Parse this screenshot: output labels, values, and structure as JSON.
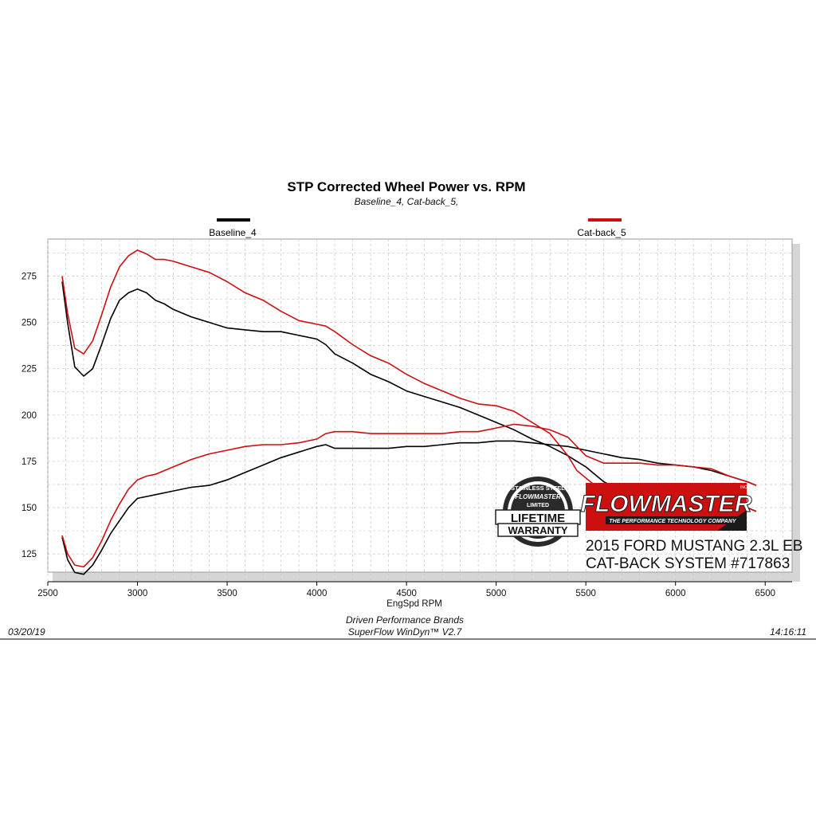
{
  "chart_data": {
    "type": "line",
    "title": "STP Corrected Wheel Power vs. RPM",
    "subtitle": "Baseline_4, Cat-back_5,",
    "xlabel": "EngSpd  RPM",
    "ylabel": "",
    "xlim": [
      2500,
      6650
    ],
    "ylim": [
      110,
      295
    ],
    "x_ticks": [
      2500,
      3000,
      3500,
      4000,
      4500,
      5000,
      5500,
      6000,
      6500
    ],
    "y_ticks": [
      125,
      150,
      175,
      200,
      225,
      250,
      275
    ],
    "grid": true,
    "legend_placement": "top",
    "series": [
      {
        "name": "Baseline_4",
        "role": "upper",
        "color": "#000000",
        "x": [
          2580,
          2610,
          2650,
          2700,
          2750,
          2800,
          2850,
          2900,
          2950,
          3000,
          3050,
          3100,
          3150,
          3200,
          3300,
          3400,
          3500,
          3600,
          3700,
          3800,
          3900,
          4000,
          4050,
          4100,
          4200,
          4300,
          4400,
          4500,
          4600,
          4700,
          4800,
          4900,
          5000,
          5100,
          5200,
          5300,
          5400,
          5450,
          5500,
          5550,
          5600,
          5700,
          5800,
          5900,
          6000,
          6100,
          6200,
          6300,
          6400,
          6450
        ],
        "y": [
          272,
          250,
          226,
          221,
          225,
          238,
          252,
          262,
          266,
          268,
          266,
          262,
          260,
          257,
          253,
          250,
          247,
          246,
          245,
          245,
          243,
          241,
          238,
          233,
          228,
          222,
          218,
          213,
          210,
          207,
          204,
          200,
          196,
          192,
          187,
          183,
          178,
          175,
          172,
          168,
          164,
          159,
          156,
          155,
          154,
          154,
          153,
          151,
          150,
          148
        ]
      },
      {
        "name": "Cat-back_5",
        "role": "upper",
        "color": "#cc1010",
        "x": [
          2580,
          2610,
          2650,
          2700,
          2750,
          2800,
          2850,
          2900,
          2950,
          3000,
          3050,
          3100,
          3150,
          3200,
          3300,
          3400,
          3500,
          3600,
          3700,
          3800,
          3900,
          4000,
          4050,
          4100,
          4200,
          4300,
          4400,
          4500,
          4600,
          4700,
          4800,
          4900,
          5000,
          5100,
          5200,
          5300,
          5400,
          5450,
          5500,
          5550,
          5600,
          5700,
          5800,
          5900,
          6000,
          6100,
          6200,
          6300,
          6400,
          6450
        ],
        "y": [
          275,
          255,
          236,
          233,
          240,
          254,
          269,
          280,
          286,
          289,
          287,
          284,
          284,
          283,
          280,
          277,
          272,
          266,
          262,
          256,
          251,
          249,
          248,
          245,
          238,
          232,
          228,
          222,
          217,
          213,
          209,
          206,
          205,
          202,
          196,
          190,
          178,
          170,
          166,
          162,
          160,
          157,
          155,
          154,
          154,
          154,
          153,
          151,
          150,
          148
        ]
      },
      {
        "name": "Baseline_4",
        "role": "lower",
        "color": "#000000",
        "x": [
          2580,
          2610,
          2650,
          2700,
          2750,
          2800,
          2850,
          2900,
          2950,
          3000,
          3050,
          3100,
          3200,
          3300,
          3400,
          3500,
          3600,
          3700,
          3800,
          3900,
          4000,
          4050,
          4100,
          4200,
          4300,
          4400,
          4500,
          4600,
          4700,
          4800,
          4900,
          5000,
          5100,
          5200,
          5300,
          5400,
          5500,
          5600,
          5700,
          5800,
          5900,
          6000,
          6100,
          6200,
          6300,
          6400,
          6450
        ],
        "y": [
          134,
          122,
          115,
          114,
          119,
          127,
          136,
          143,
          150,
          155,
          156,
          157,
          159,
          161,
          162,
          165,
          169,
          173,
          177,
          180,
          183,
          184,
          182,
          182,
          182,
          182,
          183,
          183,
          184,
          185,
          185,
          186,
          186,
          185,
          184,
          183,
          181,
          179,
          177,
          176,
          174,
          173,
          172,
          170,
          167,
          164,
          162
        ]
      },
      {
        "name": "Cat-back_5",
        "role": "lower",
        "color": "#cc1010",
        "x": [
          2580,
          2610,
          2650,
          2700,
          2750,
          2800,
          2850,
          2900,
          2950,
          3000,
          3050,
          3100,
          3200,
          3300,
          3400,
          3500,
          3600,
          3700,
          3800,
          3900,
          4000,
          4050,
          4100,
          4200,
          4300,
          4400,
          4500,
          4600,
          4700,
          4800,
          4900,
          5000,
          5100,
          5200,
          5300,
          5400,
          5500,
          5600,
          5700,
          5800,
          5900,
          6000,
          6100,
          6200,
          6300,
          6400,
          6450
        ],
        "y": [
          135,
          125,
          119,
          118,
          123,
          132,
          143,
          152,
          160,
          165,
          167,
          168,
          172,
          176,
          179,
          181,
          183,
          184,
          184,
          185,
          187,
          190,
          191,
          191,
          190,
          190,
          190,
          190,
          190,
          191,
          191,
          193,
          195,
          194,
          192,
          188,
          178,
          174,
          174,
          174,
          173,
          173,
          172,
          171,
          167,
          164,
          162
        ]
      }
    ],
    "legend": [
      {
        "label": "Baseline_4",
        "color": "#000000"
      },
      {
        "label": "Cat-back_5",
        "color": "#cc1010"
      }
    ]
  },
  "footer": {
    "date": "03/20/19",
    "company": "Driven Performance Brands",
    "software": "SuperFlow WinDyn™  V2.7",
    "time": "14:16:11"
  },
  "branding": {
    "logo_name": "FLOWMASTER",
    "logo_tagline": "THE PERFORMANCE TECHNOLOGY COMPANY",
    "logo_inc": "INC.",
    "badge_top": "STAINLESS STEEL",
    "badge_brand": "FLOWMASTER",
    "badge_limited": "LIMITED",
    "badge_line1": "LIFETIME",
    "badge_line2": "WARRANTY",
    "vehicle_line1": "2015 FORD MUSTANG 2.3L EB",
    "vehicle_line2": "CAT-BACK SYSTEM #717863",
    "accent_red": "#cc1010"
  }
}
